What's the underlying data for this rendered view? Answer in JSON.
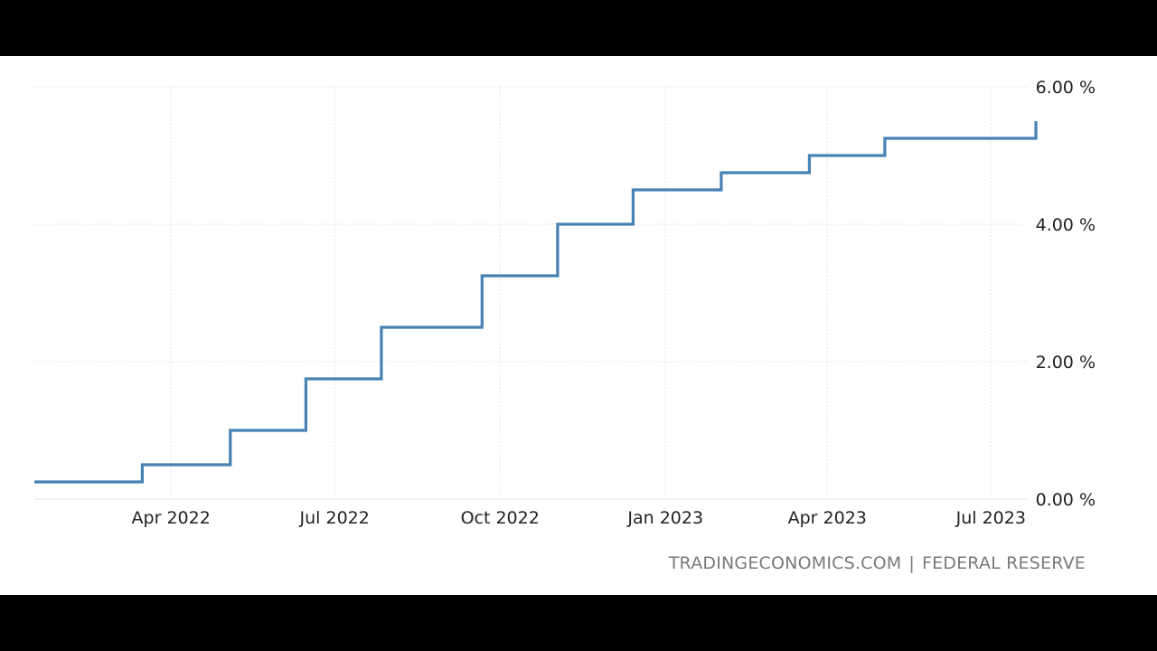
{
  "source": {
    "site": "TRADINGECONOMICS.COM",
    "separator": "|",
    "provider": "FEDERAL RESERVE"
  },
  "colors": {
    "line": "#4682b4",
    "grid": "#e6e6e6",
    "background": "#ffffff",
    "letterbox": "#000000"
  },
  "chart_data": {
    "type": "line",
    "step": true,
    "grid": true,
    "y_axis_position": "right",
    "x_range": [
      "2022-01-15",
      "2023-07-27"
    ],
    "ylim": [
      0,
      6
    ],
    "y_ticks": [
      {
        "value": 0,
        "label": "0.00 %"
      },
      {
        "value": 2,
        "label": "2.00 %"
      },
      {
        "value": 4,
        "label": "4.00 %"
      },
      {
        "value": 6,
        "label": "6.00 %"
      }
    ],
    "x_ticks": [
      {
        "date": "2022-04-01",
        "label": "Apr 2022"
      },
      {
        "date": "2022-07-01",
        "label": "Jul 2022"
      },
      {
        "date": "2022-10-01",
        "label": "Oct 2022"
      },
      {
        "date": "2023-01-01",
        "label": "Jan 2023"
      },
      {
        "date": "2023-04-01",
        "label": "Apr 2023"
      },
      {
        "date": "2023-07-01",
        "label": "Jul 2023"
      }
    ],
    "series": [
      {
        "points": [
          {
            "x": "2022-01-15",
            "y": 0.25
          },
          {
            "x": "2022-03-16",
            "y": 0.5
          },
          {
            "x": "2022-05-04",
            "y": 1.0
          },
          {
            "x": "2022-06-15",
            "y": 1.75
          },
          {
            "x": "2022-07-27",
            "y": 2.5
          },
          {
            "x": "2022-09-21",
            "y": 3.25
          },
          {
            "x": "2022-11-02",
            "y": 4.0
          },
          {
            "x": "2022-12-14",
            "y": 4.5
          },
          {
            "x": "2023-02-01",
            "y": 4.75
          },
          {
            "x": "2023-03-22",
            "y": 5.0
          },
          {
            "x": "2023-05-03",
            "y": 5.25
          },
          {
            "x": "2023-07-26",
            "y": 5.5
          }
        ]
      }
    ]
  }
}
